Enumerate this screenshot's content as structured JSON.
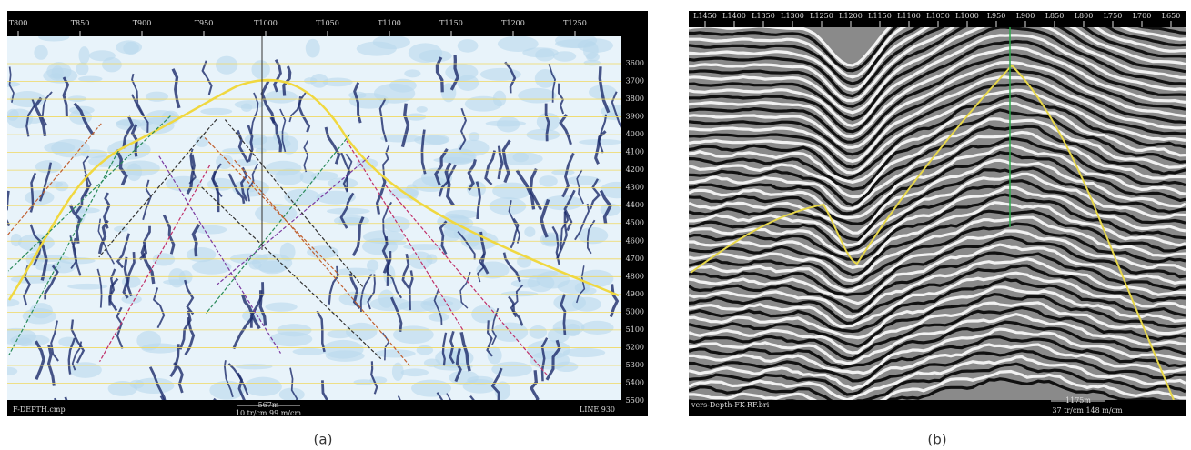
{
  "panel_a": {
    "top_labels": [
      "T800",
      "T850",
      "T900",
      "T950",
      "T1000",
      "T1050",
      "T1100",
      "T1150",
      "T1200",
      "T1250"
    ],
    "depth_labels": [
      "3600",
      "3700",
      "3800",
      "3900",
      "4000",
      "4100",
      "4200",
      "4300",
      "4400",
      "4500",
      "4600",
      "4700",
      "4800",
      "4900",
      "5000",
      "5100",
      "5200",
      "5300",
      "5400",
      "5500"
    ],
    "file_label": "F-DEPTH.cmp",
    "scale_bar": "567m",
    "scale_text": "10 tr/cm 99 m/cm",
    "line_label": "LINE 930",
    "caption": "(a)"
  },
  "panel_b": {
    "top_labels": [
      "L1450",
      "L1400",
      "L1350",
      "L1300",
      "L1250",
      "L1200",
      "L1150",
      "L1100",
      "L1050",
      "L1000",
      "L950",
      "L900",
      "L850",
      "L800",
      "L750",
      "L700",
      "L650"
    ],
    "file_label": "vers-Depth-FK-RF.bri",
    "scale_bar": "1175m",
    "scale_text": "37 tr/cm 148 m/cm",
    "caption": "(b)"
  }
}
